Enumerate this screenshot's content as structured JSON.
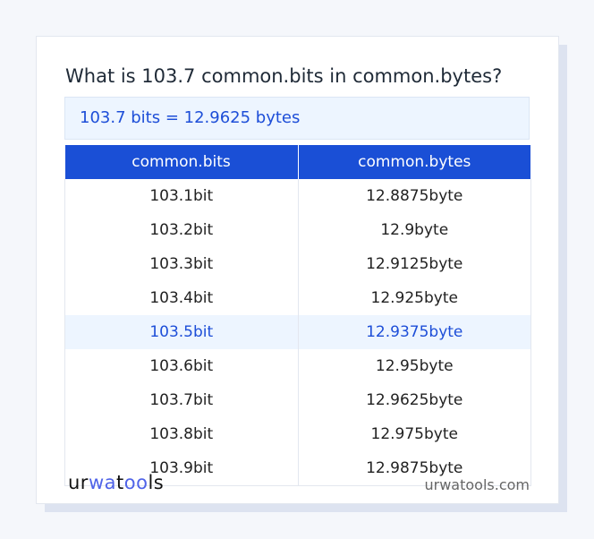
{
  "title": "What is 103.7 common.bits in common.bytes?",
  "result": "103.7 bits = 12.9625 bytes",
  "table": {
    "headers": [
      "common.bits",
      "common.bytes"
    ],
    "rows": [
      [
        "103.1bit",
        "12.8875byte"
      ],
      [
        "103.2bit",
        "12.9byte"
      ],
      [
        "103.3bit",
        "12.9125byte"
      ],
      [
        "103.4bit",
        "12.925byte"
      ],
      [
        "103.5bit",
        "12.9375byte"
      ],
      [
        "103.6bit",
        "12.95byte"
      ],
      [
        "103.7bit",
        "12.9625byte"
      ],
      [
        "103.8bit",
        "12.975byte"
      ],
      [
        "103.9bit",
        "12.9875byte"
      ]
    ],
    "highlighted_row": 4
  },
  "footer": {
    "logo": "urwatools",
    "site": "urwatools.com"
  },
  "colors": {
    "accent": "#1a4fd6",
    "highlight_bg": "#edf5ff"
  }
}
